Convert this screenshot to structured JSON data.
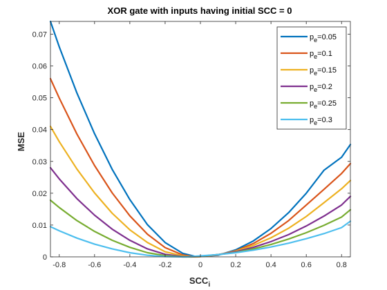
{
  "chart_data": {
    "type": "line",
    "title": "XOR gate with inputs having initial SCC = 0",
    "xlabel": {
      "main": "SCC",
      "sub": "i"
    },
    "ylabel": "MSE",
    "xlim": [
      -0.85,
      0.85
    ],
    "ylim": [
      0,
      0.074
    ],
    "xticks": [
      -0.8,
      -0.6,
      -0.4,
      -0.2,
      0,
      0.2,
      0.4,
      0.6,
      0.8
    ],
    "xtick_labels": [
      "-0.8",
      "-0.6",
      "-0.4",
      "-0.2",
      "0",
      "0.2",
      "0.4",
      "0.6",
      "0.8"
    ],
    "yticks": [
      0,
      0.01,
      0.02,
      0.03,
      0.04,
      0.05,
      0.06,
      0.07
    ],
    "ytick_labels": [
      "0",
      "0.01",
      "0.02",
      "0.03",
      "0.04",
      "0.05",
      "0.06",
      "0.07"
    ],
    "grid": false,
    "legend_position": "top-right",
    "series": [
      {
        "name": "p_e=0.05",
        "label_main": "p",
        "label_sub": "e",
        "label_rest": "=0.05",
        "color": "#0072BD",
        "x": [
          -0.85,
          -0.8,
          -0.7,
          -0.6,
          -0.5,
          -0.4,
          -0.3,
          -0.2,
          -0.1,
          -0.02,
          0,
          0.1,
          0.2,
          0.3,
          0.4,
          0.5,
          0.6,
          0.7,
          0.8,
          0.85
        ],
        "y": [
          0.074,
          0.066,
          0.0515,
          0.0387,
          0.0275,
          0.018,
          0.0101,
          0.0045,
          0.0011,
          0,
          0.0001,
          0.0005,
          0.0022,
          0.005,
          0.0089,
          0.0139,
          0.02,
          0.0272,
          0.0313,
          0.0353
        ]
      },
      {
        "name": "p_e=0.1",
        "label_main": "p",
        "label_sub": "e",
        "label_rest": "=0.1",
        "color": "#D95319",
        "x": [
          -0.85,
          -0.8,
          -0.7,
          -0.6,
          -0.5,
          -0.4,
          -0.3,
          -0.2,
          -0.1,
          -0.03,
          0,
          0.1,
          0.2,
          0.3,
          0.4,
          0.5,
          0.6,
          0.7,
          0.8,
          0.85
        ],
        "y": [
          0.056,
          0.0499,
          0.0386,
          0.0287,
          0.0201,
          0.0129,
          0.0071,
          0.0029,
          0.0006,
          0,
          0.0001,
          0.0006,
          0.0019,
          0.0042,
          0.0074,
          0.0114,
          0.0163,
          0.0212,
          0.0262,
          0.0293
        ]
      },
      {
        "name": "p_e=0.15",
        "label_main": "p",
        "label_sub": "e",
        "label_rest": "=0.15",
        "color": "#EDB120",
        "x": [
          -0.85,
          -0.8,
          -0.7,
          -0.6,
          -0.5,
          -0.4,
          -0.3,
          -0.2,
          -0.1,
          -0.04,
          0,
          0.1,
          0.2,
          0.3,
          0.4,
          0.5,
          0.6,
          0.7,
          0.8,
          0.85
        ],
        "y": [
          0.041,
          0.0362,
          0.0276,
          0.0201,
          0.0137,
          0.0085,
          0.0045,
          0.0016,
          0.0003,
          0,
          0.0001,
          0.0007,
          0.0018,
          0.0036,
          0.006,
          0.009,
          0.0127,
          0.017,
          0.0214,
          0.024
        ]
      },
      {
        "name": "p_e=0.2",
        "label_main": "p",
        "label_sub": "e",
        "label_rest": "=0.2",
        "color": "#7E2F8E",
        "x": [
          -0.85,
          -0.8,
          -0.7,
          -0.6,
          -0.5,
          -0.4,
          -0.3,
          -0.2,
          -0.1,
          -0.05,
          0,
          0.1,
          0.2,
          0.3,
          0.4,
          0.5,
          0.6,
          0.7,
          0.8,
          0.85
        ],
        "y": [
          0.028,
          0.0245,
          0.0183,
          0.0131,
          0.0087,
          0.0052,
          0.0025,
          0.0008,
          0.0001,
          0,
          0.0002,
          0.0007,
          0.0016,
          0.003,
          0.0048,
          0.007,
          0.0097,
          0.0128,
          0.0163,
          0.019
        ]
      },
      {
        "name": "p_e=0.25",
        "label_main": "p",
        "label_sub": "e",
        "label_rest": "=0.25",
        "color": "#77AC30",
        "x": [
          -0.85,
          -0.8,
          -0.7,
          -0.6,
          -0.5,
          -0.4,
          -0.3,
          -0.2,
          -0.1,
          -0.06,
          0,
          0.1,
          0.2,
          0.3,
          0.4,
          0.5,
          0.6,
          0.7,
          0.8,
          0.85
        ],
        "y": [
          0.0178,
          0.0155,
          0.0114,
          0.008,
          0.0052,
          0.003,
          0.0013,
          0.0004,
          0,
          0,
          0.0002,
          0.0007,
          0.0014,
          0.0025,
          0.0039,
          0.0056,
          0.0076,
          0.0099,
          0.0125,
          0.0148
        ]
      },
      {
        "name": "p_e=0.3",
        "label_main": "p",
        "label_sub": "e",
        "label_rest": "=0.3",
        "color": "#4DBEEE",
        "x": [
          -0.85,
          -0.8,
          -0.7,
          -0.6,
          -0.5,
          -0.4,
          -0.3,
          -0.2,
          -0.1,
          -0.08,
          0,
          0.1,
          0.2,
          0.3,
          0.4,
          0.5,
          0.6,
          0.7,
          0.8,
          0.85
        ],
        "y": [
          0.0095,
          0.0082,
          0.0059,
          0.004,
          0.0025,
          0.0013,
          0.0005,
          0.0001,
          0,
          0,
          0.0003,
          0.0007,
          0.0013,
          0.0021,
          0.0031,
          0.0043,
          0.0057,
          0.0073,
          0.0092,
          0.0112
        ]
      }
    ]
  }
}
